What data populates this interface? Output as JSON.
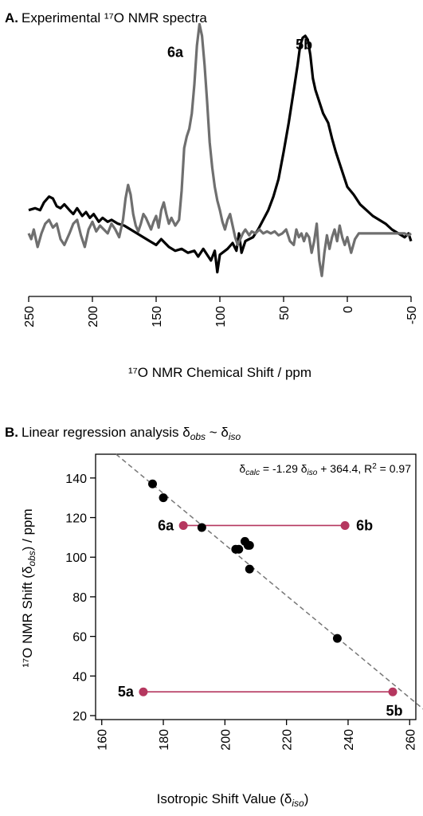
{
  "chart_data": [
    {
      "type": "line",
      "panel_letter": "A.",
      "title": "Experimental ¹⁷O NMR spectra",
      "xlabel": "¹⁷O NMR Chemical Shift / ppm",
      "ylabel": "",
      "xlim": [
        250,
        -50
      ],
      "x_reversed": true,
      "xticks": [
        "250",
        "200",
        "150",
        "100",
        "50",
        "0",
        "-50"
      ],
      "xtick_values": [
        250,
        200,
        150,
        100,
        50,
        0,
        -50
      ],
      "grid": false,
      "series": [
        {
          "label": "5b",
          "label_at": [
            34,
            1.0
          ],
          "color": "#000000",
          "points": [
            [
              250,
              0.1
            ],
            [
              245,
              0.11
            ],
            [
              241,
              0.1
            ],
            [
              238,
              0.14
            ],
            [
              234,
              0.17
            ],
            [
              231,
              0.16
            ],
            [
              228,
              0.12
            ],
            [
              225,
              0.11
            ],
            [
              222,
              0.13
            ],
            [
              218,
              0.1
            ],
            [
              215,
              0.08
            ],
            [
              212,
              0.11
            ],
            [
              208,
              0.07
            ],
            [
              205,
              0.09
            ],
            [
              202,
              0.06
            ],
            [
              199,
              0.08
            ],
            [
              195,
              0.04
            ],
            [
              192,
              0.06
            ],
            [
              188,
              0.04
            ],
            [
              185,
              0.05
            ],
            [
              180,
              0.03
            ],
            [
              175,
              0.02
            ],
            [
              170,
              0.0
            ],
            [
              165,
              -0.02
            ],
            [
              160,
              -0.04
            ],
            [
              155,
              -0.06
            ],
            [
              150,
              -0.08
            ],
            [
              146,
              -0.05
            ],
            [
              140,
              -0.09
            ],
            [
              135,
              -0.11
            ],
            [
              130,
              -0.1
            ],
            [
              125,
              -0.12
            ],
            [
              120,
              -0.11
            ],
            [
              117,
              -0.14
            ],
            [
              113,
              -0.1
            ],
            [
              110,
              -0.13
            ],
            [
              107,
              -0.16
            ],
            [
              104,
              -0.11
            ],
            [
              102,
              -0.22
            ],
            [
              100,
              -0.13
            ],
            [
              98,
              -0.12
            ],
            [
              94,
              -0.1
            ],
            [
              90,
              -0.07
            ],
            [
              87,
              -0.11
            ],
            [
              85,
              -0.02
            ],
            [
              83,
              -0.12
            ],
            [
              80,
              -0.06
            ],
            [
              77,
              -0.05
            ],
            [
              74,
              -0.04
            ],
            [
              70,
              0.0
            ],
            [
              66,
              0.05
            ],
            [
              62,
              0.1
            ],
            [
              58,
              0.17
            ],
            [
              54,
              0.26
            ],
            [
              50,
              0.4
            ],
            [
              46,
              0.55
            ],
            [
              42,
              0.72
            ],
            [
              39,
              0.85
            ],
            [
              37,
              0.95
            ],
            [
              35,
              0.99
            ],
            [
              33,
              1.0
            ],
            [
              31,
              0.98
            ],
            [
              29,
              0.9
            ],
            [
              27,
              0.78
            ],
            [
              25,
              0.72
            ],
            [
              22,
              0.66
            ],
            [
              19,
              0.6
            ],
            [
              15,
              0.55
            ],
            [
              12,
              0.47
            ],
            [
              9,
              0.4
            ],
            [
              6,
              0.34
            ],
            [
              3,
              0.28
            ],
            [
              0,
              0.22
            ],
            [
              -5,
              0.18
            ],
            [
              -10,
              0.13
            ],
            [
              -15,
              0.1
            ],
            [
              -20,
              0.07
            ],
            [
              -25,
              0.05
            ],
            [
              -30,
              0.03
            ],
            [
              -35,
              0.0
            ],
            [
              -40,
              -0.02
            ],
            [
              -45,
              -0.04
            ],
            [
              -48,
              -0.02
            ],
            [
              -50,
              -0.06
            ]
          ]
        },
        {
          "label": "6a",
          "label_at": [
            135,
            0.96
          ],
          "color": "#6f6f6f",
          "points": [
            [
              250,
              -0.02
            ],
            [
              248,
              -0.05
            ],
            [
              246,
              0.0
            ],
            [
              243,
              -0.09
            ],
            [
              240,
              -0.02
            ],
            [
              237,
              0.03
            ],
            [
              234,
              0.05
            ],
            [
              231,
              0.01
            ],
            [
              228,
              0.03
            ],
            [
              225,
              -0.05
            ],
            [
              222,
              -0.08
            ],
            [
              218,
              -0.02
            ],
            [
              215,
              0.03
            ],
            [
              212,
              0.05
            ],
            [
              209,
              -0.03
            ],
            [
              206,
              -0.09
            ],
            [
              203,
              0.0
            ],
            [
              200,
              0.04
            ],
            [
              197,
              -0.01
            ],
            [
              194,
              0.02
            ],
            [
              191,
              0.0
            ],
            [
              188,
              -0.02
            ],
            [
              185,
              0.03
            ],
            [
              182,
              0.0
            ],
            [
              179,
              -0.04
            ],
            [
              176,
              0.05
            ],
            [
              174,
              0.16
            ],
            [
              172,
              0.23
            ],
            [
              170,
              0.18
            ],
            [
              168,
              0.08
            ],
            [
              166,
              0.02
            ],
            [
              164,
              -0.01
            ],
            [
              162,
              0.03
            ],
            [
              160,
              0.08
            ],
            [
              158,
              0.06
            ],
            [
              156,
              0.03
            ],
            [
              154,
              0.0
            ],
            [
              152,
              0.04
            ],
            [
              150,
              0.07
            ],
            [
              148,
              0.01
            ],
            [
              146,
              0.1
            ],
            [
              144,
              0.14
            ],
            [
              142,
              0.08
            ],
            [
              140,
              0.03
            ],
            [
              138,
              0.06
            ],
            [
              135,
              0.02
            ],
            [
              132,
              0.05
            ],
            [
              130,
              0.2
            ],
            [
              128,
              0.42
            ],
            [
              126,
              0.48
            ],
            [
              124,
              0.52
            ],
            [
              122,
              0.6
            ],
            [
              120,
              0.75
            ],
            [
              118,
              0.95
            ],
            [
              116,
              1.06
            ],
            [
              114,
              1.0
            ],
            [
              112,
              0.85
            ],
            [
              110,
              0.66
            ],
            [
              108,
              0.45
            ],
            [
              106,
              0.32
            ],
            [
              104,
              0.22
            ],
            [
              102,
              0.15
            ],
            [
              100,
              0.1
            ],
            [
              98,
              0.04
            ],
            [
              96,
              0.0
            ],
            [
              94,
              0.05
            ],
            [
              92,
              0.08
            ],
            [
              90,
              0.02
            ],
            [
              88,
              -0.04
            ],
            [
              86,
              -0.08
            ],
            [
              84,
              -0.05
            ],
            [
              82,
              -0.02
            ],
            [
              80,
              0.0
            ],
            [
              77,
              -0.03
            ],
            [
              75,
              -0.01
            ],
            [
              72,
              -0.02
            ],
            [
              69,
              0.0
            ],
            [
              66,
              -0.02
            ],
            [
              63,
              -0.01
            ],
            [
              60,
              -0.02
            ],
            [
              57,
              -0.01
            ],
            [
              54,
              -0.03
            ],
            [
              51,
              -0.02
            ],
            [
              48,
              0.0
            ],
            [
              45,
              -0.06
            ],
            [
              42,
              -0.08
            ],
            [
              40,
              0.0
            ],
            [
              38,
              -0.04
            ],
            [
              36,
              -0.02
            ],
            [
              34,
              -0.06
            ],
            [
              32,
              -0.02
            ],
            [
              30,
              -0.04
            ],
            [
              28,
              -0.12
            ],
            [
              26,
              -0.06
            ],
            [
              24,
              0.03
            ],
            [
              22,
              -0.16
            ],
            [
              20,
              -0.24
            ],
            [
              18,
              -0.12
            ],
            [
              16,
              -0.03
            ],
            [
              14,
              -0.1
            ],
            [
              12,
              -0.04
            ],
            [
              10,
              0.0
            ],
            [
              8,
              -0.06
            ],
            [
              6,
              0.02
            ],
            [
              4,
              -0.04
            ],
            [
              2,
              -0.08
            ],
            [
              0,
              -0.04
            ],
            [
              -3,
              -0.12
            ],
            [
              -6,
              -0.05
            ],
            [
              -9,
              -0.02
            ],
            [
              -12,
              -0.02
            ],
            [
              -20,
              -0.02
            ],
            [
              -30,
              -0.02
            ],
            [
              -40,
              -0.02
            ],
            [
              -45,
              -0.02
            ],
            [
              -48,
              -0.03
            ],
            [
              -50,
              -0.02
            ]
          ]
        }
      ]
    },
    {
      "type": "scatter",
      "panel_letter": "B.",
      "title_main": "Linear regression analysis δ",
      "title_sub1": "obs",
      "title_mid": " ~ δ",
      "title_sub2": "iso",
      "xlabel_main": "Isotropic Shift Value (δ",
      "xlabel_sub": "iso",
      "xlabel_end": ")",
      "ylabel_main": "¹⁷O NMR Shift (δ",
      "ylabel_sub": "obs",
      "ylabel_end": ") / ppm",
      "xlim": [
        158,
        262
      ],
      "ylim": [
        18,
        152
      ],
      "xticks": [
        "160",
        "180",
        "200",
        "220",
        "240",
        "260"
      ],
      "xtick_values": [
        160,
        180,
        200,
        220,
        240,
        260
      ],
      "yticks": [
        "20",
        "40",
        "60",
        "80",
        "100",
        "120",
        "140"
      ],
      "ytick_values": [
        20,
        40,
        60,
        80,
        100,
        120,
        140
      ],
      "grid": false,
      "annotation": {
        "p1": "δ",
        "s1": "calc",
        "p2": " = -1.29 δ",
        "s2": "iso",
        "p3": " + 364.4, R",
        "sup": "2",
        "p4": " = 0.97"
      },
      "fit": {
        "slope": -1.29,
        "intercept": 364.4,
        "color": "#777777"
      },
      "points_color": "#000000",
      "points": [
        [
          176.5,
          137
        ],
        [
          180,
          130
        ],
        [
          192.5,
          115
        ],
        [
          203.5,
          104
        ],
        [
          204.5,
          104
        ],
        [
          206.5,
          108
        ],
        [
          207.5,
          106
        ],
        [
          208,
          106
        ],
        [
          208,
          94
        ],
        [
          236.5,
          59
        ]
      ],
      "pairs_color": "#b5375f",
      "pairs": [
        {
          "from": [
            186.5,
            116
          ],
          "to": [
            239,
            116
          ],
          "from_label": "6a",
          "to_label": "6b"
        },
        {
          "from": [
            173.5,
            32
          ],
          "to": [
            254.5,
            32
          ],
          "from_label": "5a",
          "to_label": "5b"
        }
      ]
    }
  ]
}
